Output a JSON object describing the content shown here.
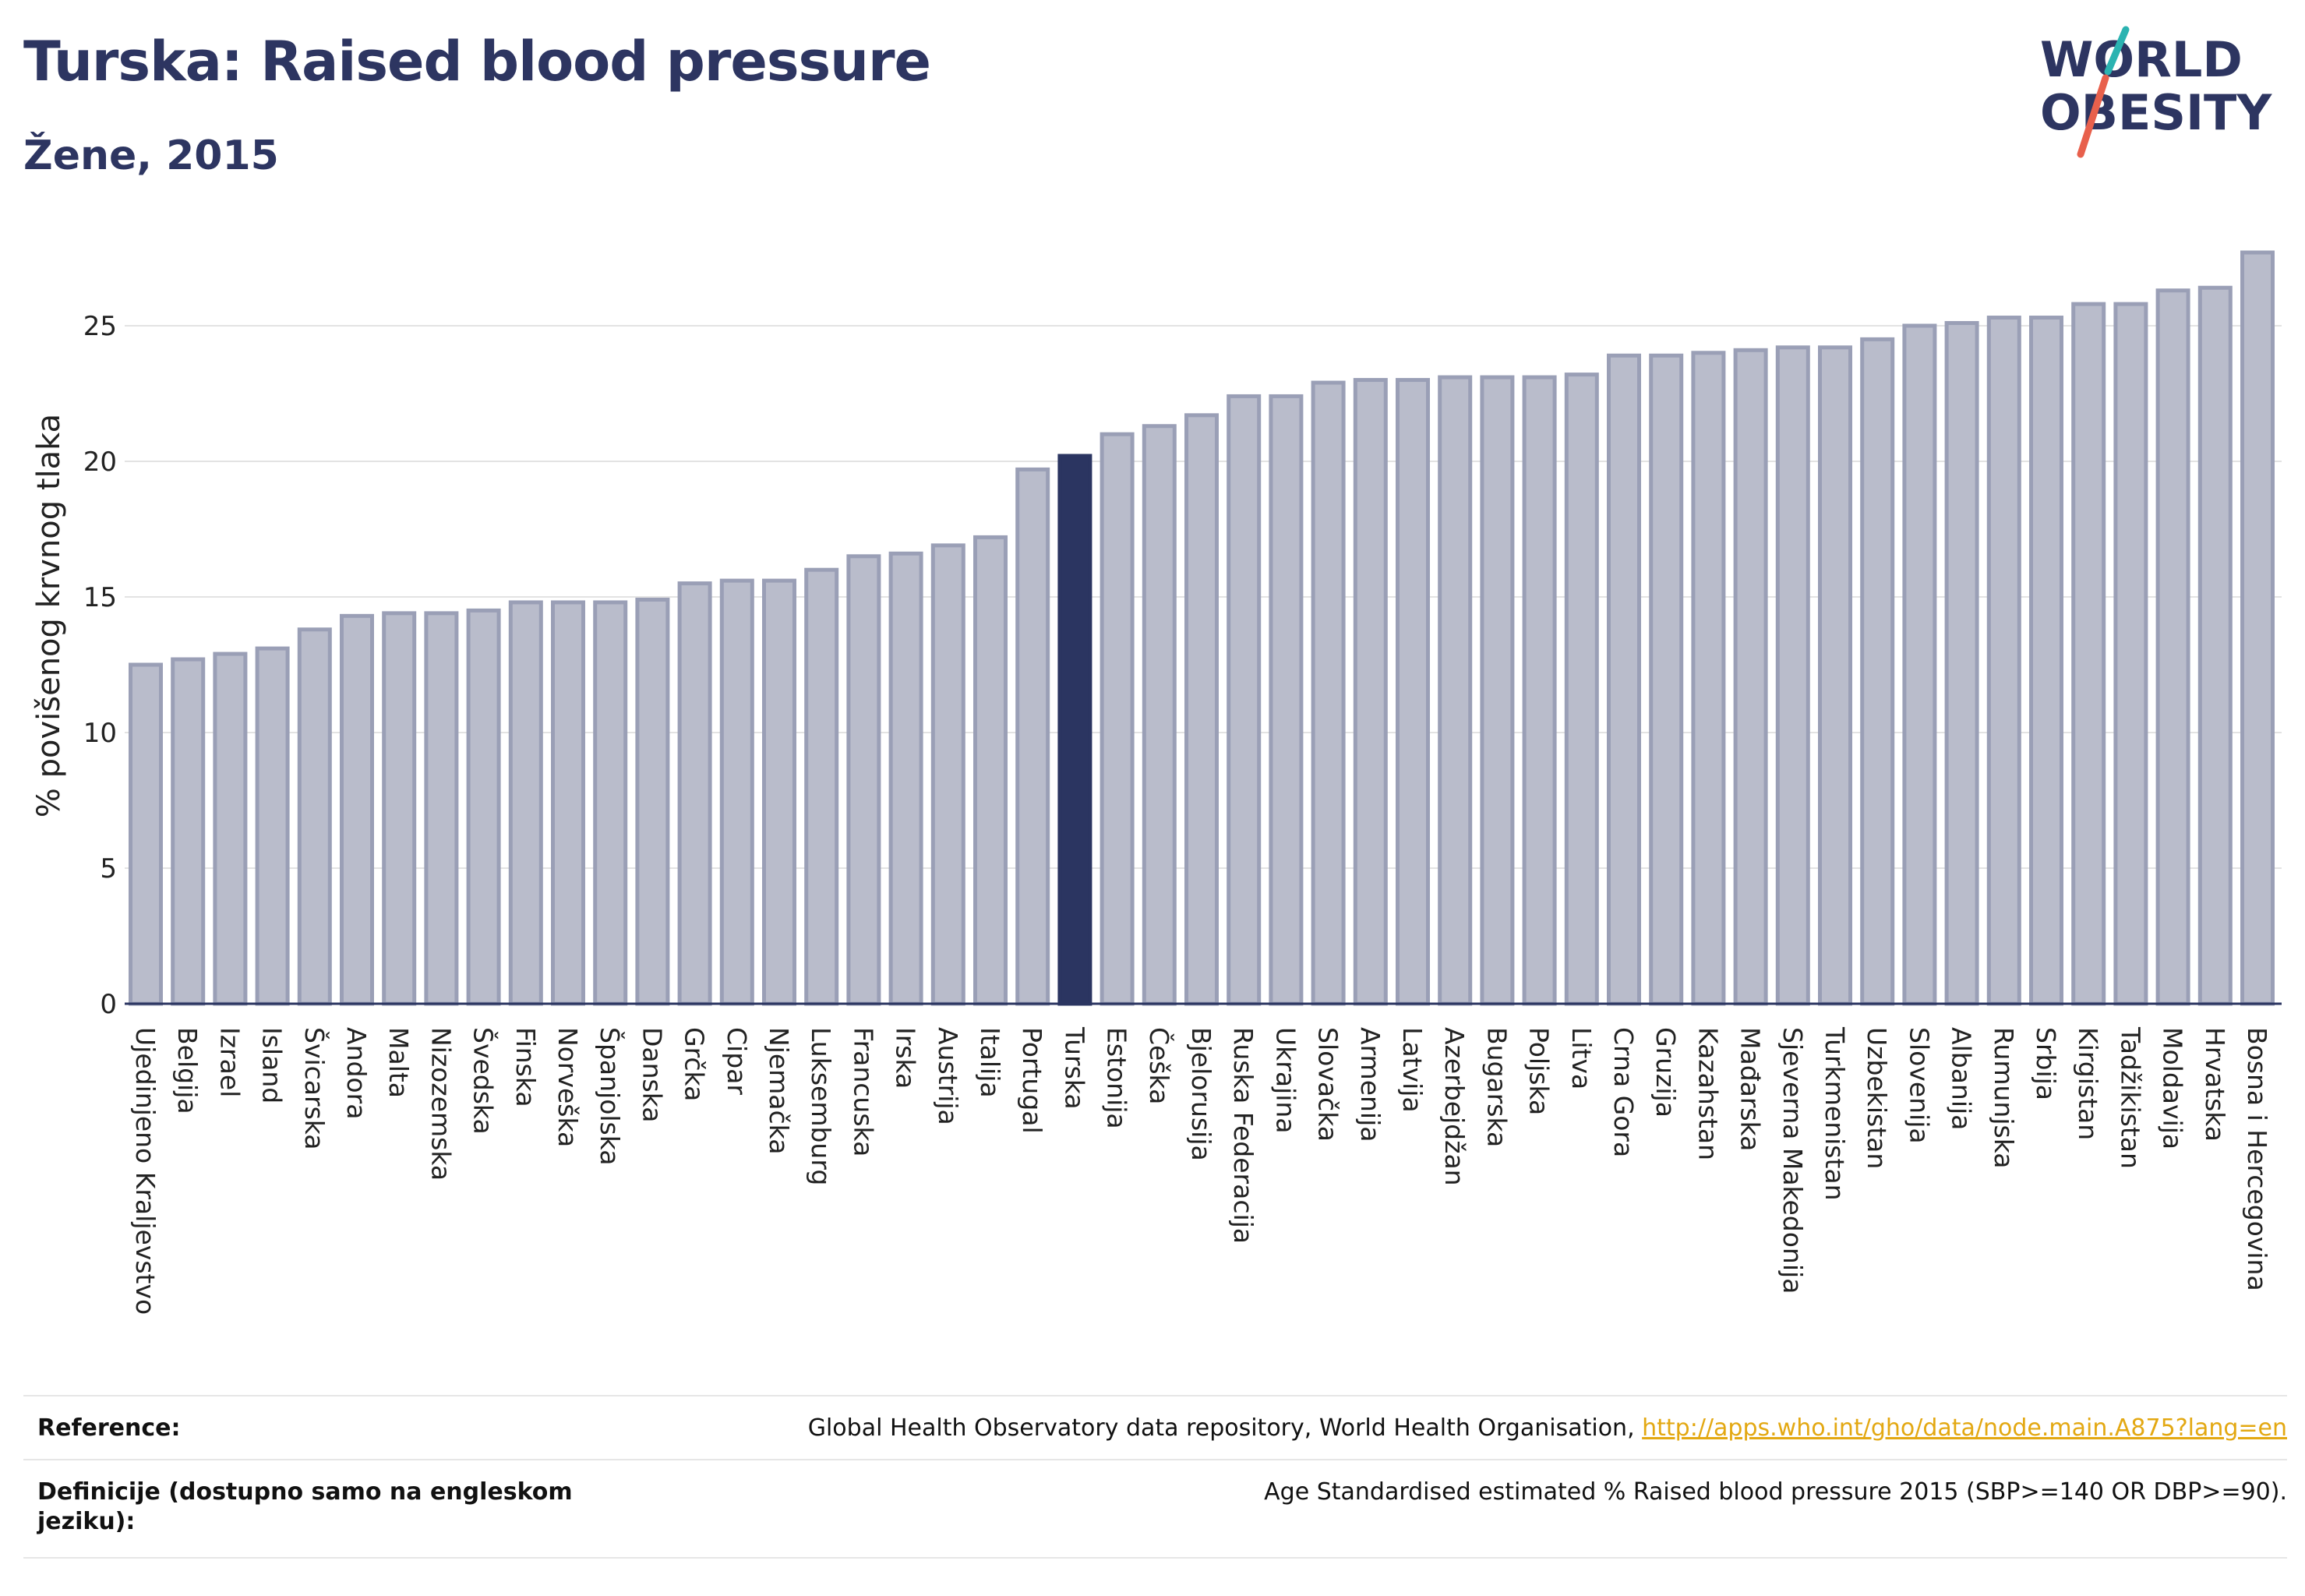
{
  "header": {
    "title": "Turska: Raised blood pressure",
    "subtitle": "Žene, 2015"
  },
  "logo": {
    "line1": "WORLD",
    "line2": "OBESITY",
    "colors": {
      "text": "#2d3561",
      "slash_teal": "#2bb3b1",
      "slash_red": "#e8604c"
    }
  },
  "colors": {
    "bar_fill": "#b9bccb",
    "bar_stroke": "#9a9fb6",
    "highlight": "#2b3561",
    "grid": "#e3e3e3",
    "axis": "#2b3561"
  },
  "chart_data": {
    "type": "bar",
    "title": "Turska: Raised blood pressure",
    "subtitle": "Žene, 2015",
    "ylabel": "% povišenog krvnog tlaka",
    "xlabel": "",
    "ylim": [
      0,
      27.7
    ],
    "yticks": [
      0,
      5,
      10,
      15,
      20,
      25
    ],
    "grid": true,
    "highlight_category": "Turska",
    "categories": [
      "Ujedinjeno Kraljevstvo",
      "Belgija",
      "Izrael",
      "Island",
      "Švicarska",
      "Andora",
      "Malta",
      "Nizozemska",
      "Švedska",
      "Finska",
      "Norveška",
      "Španjolska",
      "Danska",
      "Grčka",
      "Cipar",
      "Njemačka",
      "Luksemburg",
      "Francuska",
      "Irska",
      "Austrija",
      "Italija",
      "Portugal",
      "Turska",
      "Estonija",
      "Češka",
      "Bjelorusija",
      "Ruska Federacija",
      "Ukrajina",
      "Slovačka",
      "Armenija",
      "Latvija",
      "Azerbejdžan",
      "Bugarska",
      "Poljska",
      "Litva",
      "Crna Gora",
      "Gruzija",
      "Kazahstan",
      "Mađarska",
      "Sjeverna Makedonija",
      "Turkmenistan",
      "Uzbekistan",
      "Slovenija",
      "Albanija",
      "Rumunjska",
      "Srbija",
      "Kirgistan",
      "Tadžikistan",
      "Moldavija",
      "Hrvatska",
      "Bosna i Hercegovina"
    ],
    "values": [
      12.5,
      12.7,
      12.9,
      13.1,
      13.8,
      14.3,
      14.4,
      14.4,
      14.5,
      14.8,
      14.8,
      14.8,
      14.9,
      15.5,
      15.6,
      15.6,
      16.0,
      16.5,
      16.6,
      16.9,
      17.2,
      19.7,
      20.2,
      21.0,
      21.3,
      21.7,
      22.4,
      22.4,
      22.9,
      23.0,
      23.0,
      23.1,
      23.1,
      23.1,
      23.2,
      23.9,
      23.9,
      24.0,
      24.1,
      24.2,
      24.2,
      24.5,
      25.0,
      25.1,
      25.3,
      25.3,
      25.8,
      25.8,
      26.3,
      26.4,
      27.7
    ]
  },
  "footer": {
    "reference_label": "Reference:",
    "reference_text": "Global Health Observatory data repository, World Health Organisation, ",
    "reference_link": "http://apps.who.int/gho/data/node.main.A875?lang=en",
    "definition_label": "Definicije (dostupno samo na engleskom jeziku):",
    "definition_text": "Age Standardised estimated % Raised blood pressure 2015 (SBP>=140 OR DBP>=90)."
  }
}
